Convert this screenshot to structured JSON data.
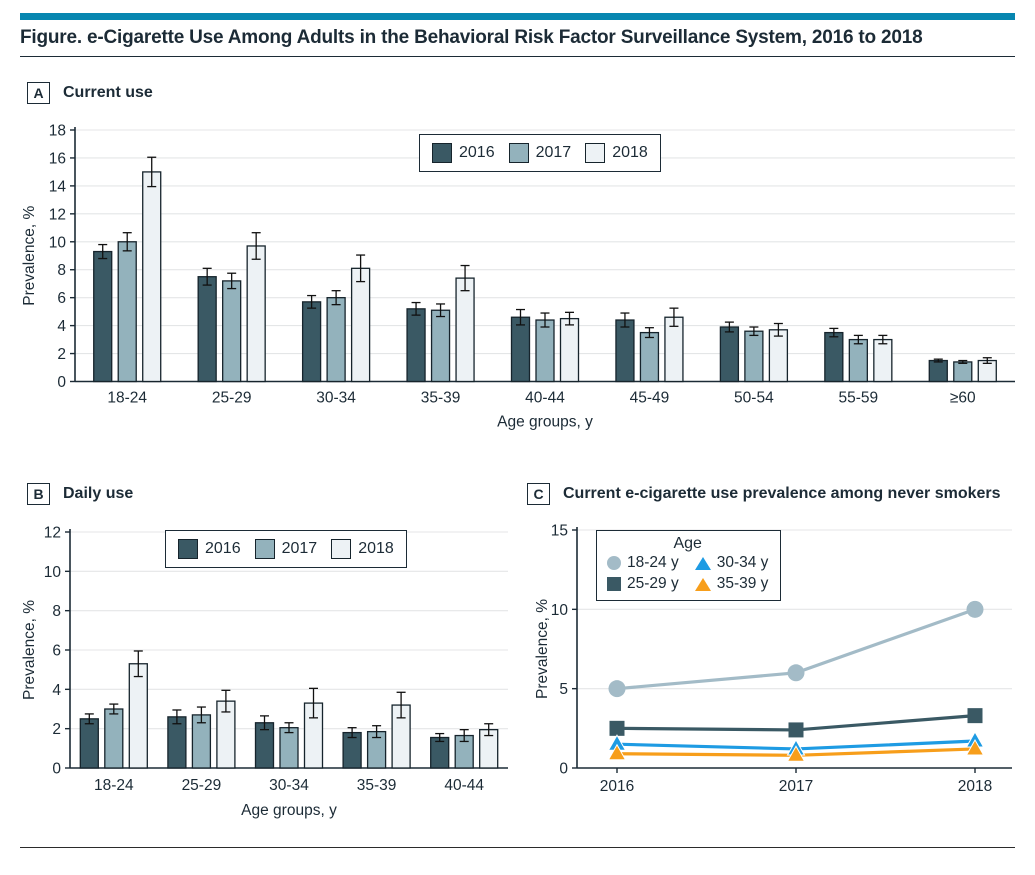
{
  "page": {
    "title": "Figure. e-Cigarette Use Among Adults in the Behavioral Risk Factor Surveillance System, 2016 to 2018"
  },
  "colors": {
    "accent": "#0786B0",
    "text": "#1C2B36",
    "axis": "#1C2B36",
    "grid": "#E4E6E7",
    "bar_stroke": "#16242C",
    "error_bar": "#111111",
    "year2016": "#3A5964",
    "year2017": "#93B2BC",
    "year2018": "#EDF2F5",
    "series_18_24": "#A3BBC7",
    "series_25_29": "#3A5964",
    "series_30_34": "#1E9BE3",
    "series_35_39": "#F79E1B"
  },
  "chart_data": [
    {
      "id": "A",
      "type": "bar",
      "panel_label": "A",
      "title": "Current use",
      "categories": [
        "18-24",
        "25-29",
        "30-34",
        "35-39",
        "40-44",
        "45-49",
        "50-54",
        "55-59",
        "≥60"
      ],
      "series": [
        {
          "name": "2016",
          "color_key": "year2016",
          "values": [
            9.3,
            7.5,
            5.7,
            5.2,
            4.6,
            4.4,
            3.9,
            3.5,
            1.5
          ],
          "err": [
            0.5,
            0.6,
            0.45,
            0.45,
            0.55,
            0.5,
            0.35,
            0.3,
            0.1
          ]
        },
        {
          "name": "2017",
          "color_key": "year2017",
          "values": [
            10.0,
            7.2,
            6.0,
            5.1,
            4.4,
            3.5,
            3.6,
            3.0,
            1.4
          ],
          "err": [
            0.65,
            0.55,
            0.5,
            0.45,
            0.5,
            0.35,
            0.3,
            0.3,
            0.1
          ]
        },
        {
          "name": "2018",
          "color_key": "year2018",
          "values": [
            15.0,
            9.7,
            8.1,
            7.4,
            4.5,
            4.6,
            3.7,
            3.0,
            1.5
          ],
          "err": [
            1.05,
            0.95,
            0.95,
            0.9,
            0.45,
            0.65,
            0.45,
            0.3,
            0.2
          ]
        }
      ],
      "xlabel": "Age groups, y",
      "ylabel": "Prevalence, %",
      "ylim": [
        0,
        18
      ],
      "ytick_step": 2,
      "grid": true,
      "legend_position": "inside-top-right"
    },
    {
      "id": "B",
      "type": "bar",
      "panel_label": "B",
      "title": "Daily use",
      "categories": [
        "18-24",
        "25-29",
        "30-34",
        "35-39",
        "40-44"
      ],
      "series": [
        {
          "name": "2016",
          "color_key": "year2016",
          "values": [
            2.5,
            2.6,
            2.3,
            1.8,
            1.55
          ],
          "err": [
            0.25,
            0.35,
            0.35,
            0.25,
            0.2
          ]
        },
        {
          "name": "2017",
          "color_key": "year2017",
          "values": [
            3.0,
            2.7,
            2.05,
            1.85,
            1.65
          ],
          "err": [
            0.25,
            0.4,
            0.25,
            0.3,
            0.3
          ]
        },
        {
          "name": "2018",
          "color_key": "year2018",
          "values": [
            5.3,
            3.4,
            3.3,
            3.2,
            1.95
          ],
          "err": [
            0.65,
            0.55,
            0.75,
            0.65,
            0.3
          ]
        }
      ],
      "xlabel": "Age groups, y",
      "ylabel": "Prevalence, %",
      "ylim": [
        0,
        12
      ],
      "ytick_step": 2,
      "grid": true,
      "legend_position": "inside-top"
    },
    {
      "id": "C",
      "type": "line",
      "panel_label": "C",
      "title": "Current e-cigarette use prevalence among never smokers",
      "x": [
        "2016",
        "2017",
        "2018"
      ],
      "legend_title": "Age",
      "series": [
        {
          "name": "18-24 y",
          "marker": "circle",
          "color_key": "series_18_24",
          "values": [
            5.0,
            6.0,
            10.0
          ]
        },
        {
          "name": "25-29 y",
          "marker": "square",
          "color_key": "series_25_29",
          "values": [
            2.5,
            2.4,
            3.3
          ]
        },
        {
          "name": "30-34 y",
          "marker": "triangle",
          "color_key": "series_30_34",
          "values": [
            1.5,
            1.2,
            1.7
          ]
        },
        {
          "name": "35-39 y",
          "marker": "triangle",
          "color_key": "series_35_39",
          "values": [
            0.9,
            0.8,
            1.2
          ]
        }
      ],
      "ylabel": "Prevalence, %",
      "ylim": [
        0,
        15
      ],
      "ytick_step": 5,
      "grid": true,
      "legend_position": "inside-top-left"
    }
  ]
}
